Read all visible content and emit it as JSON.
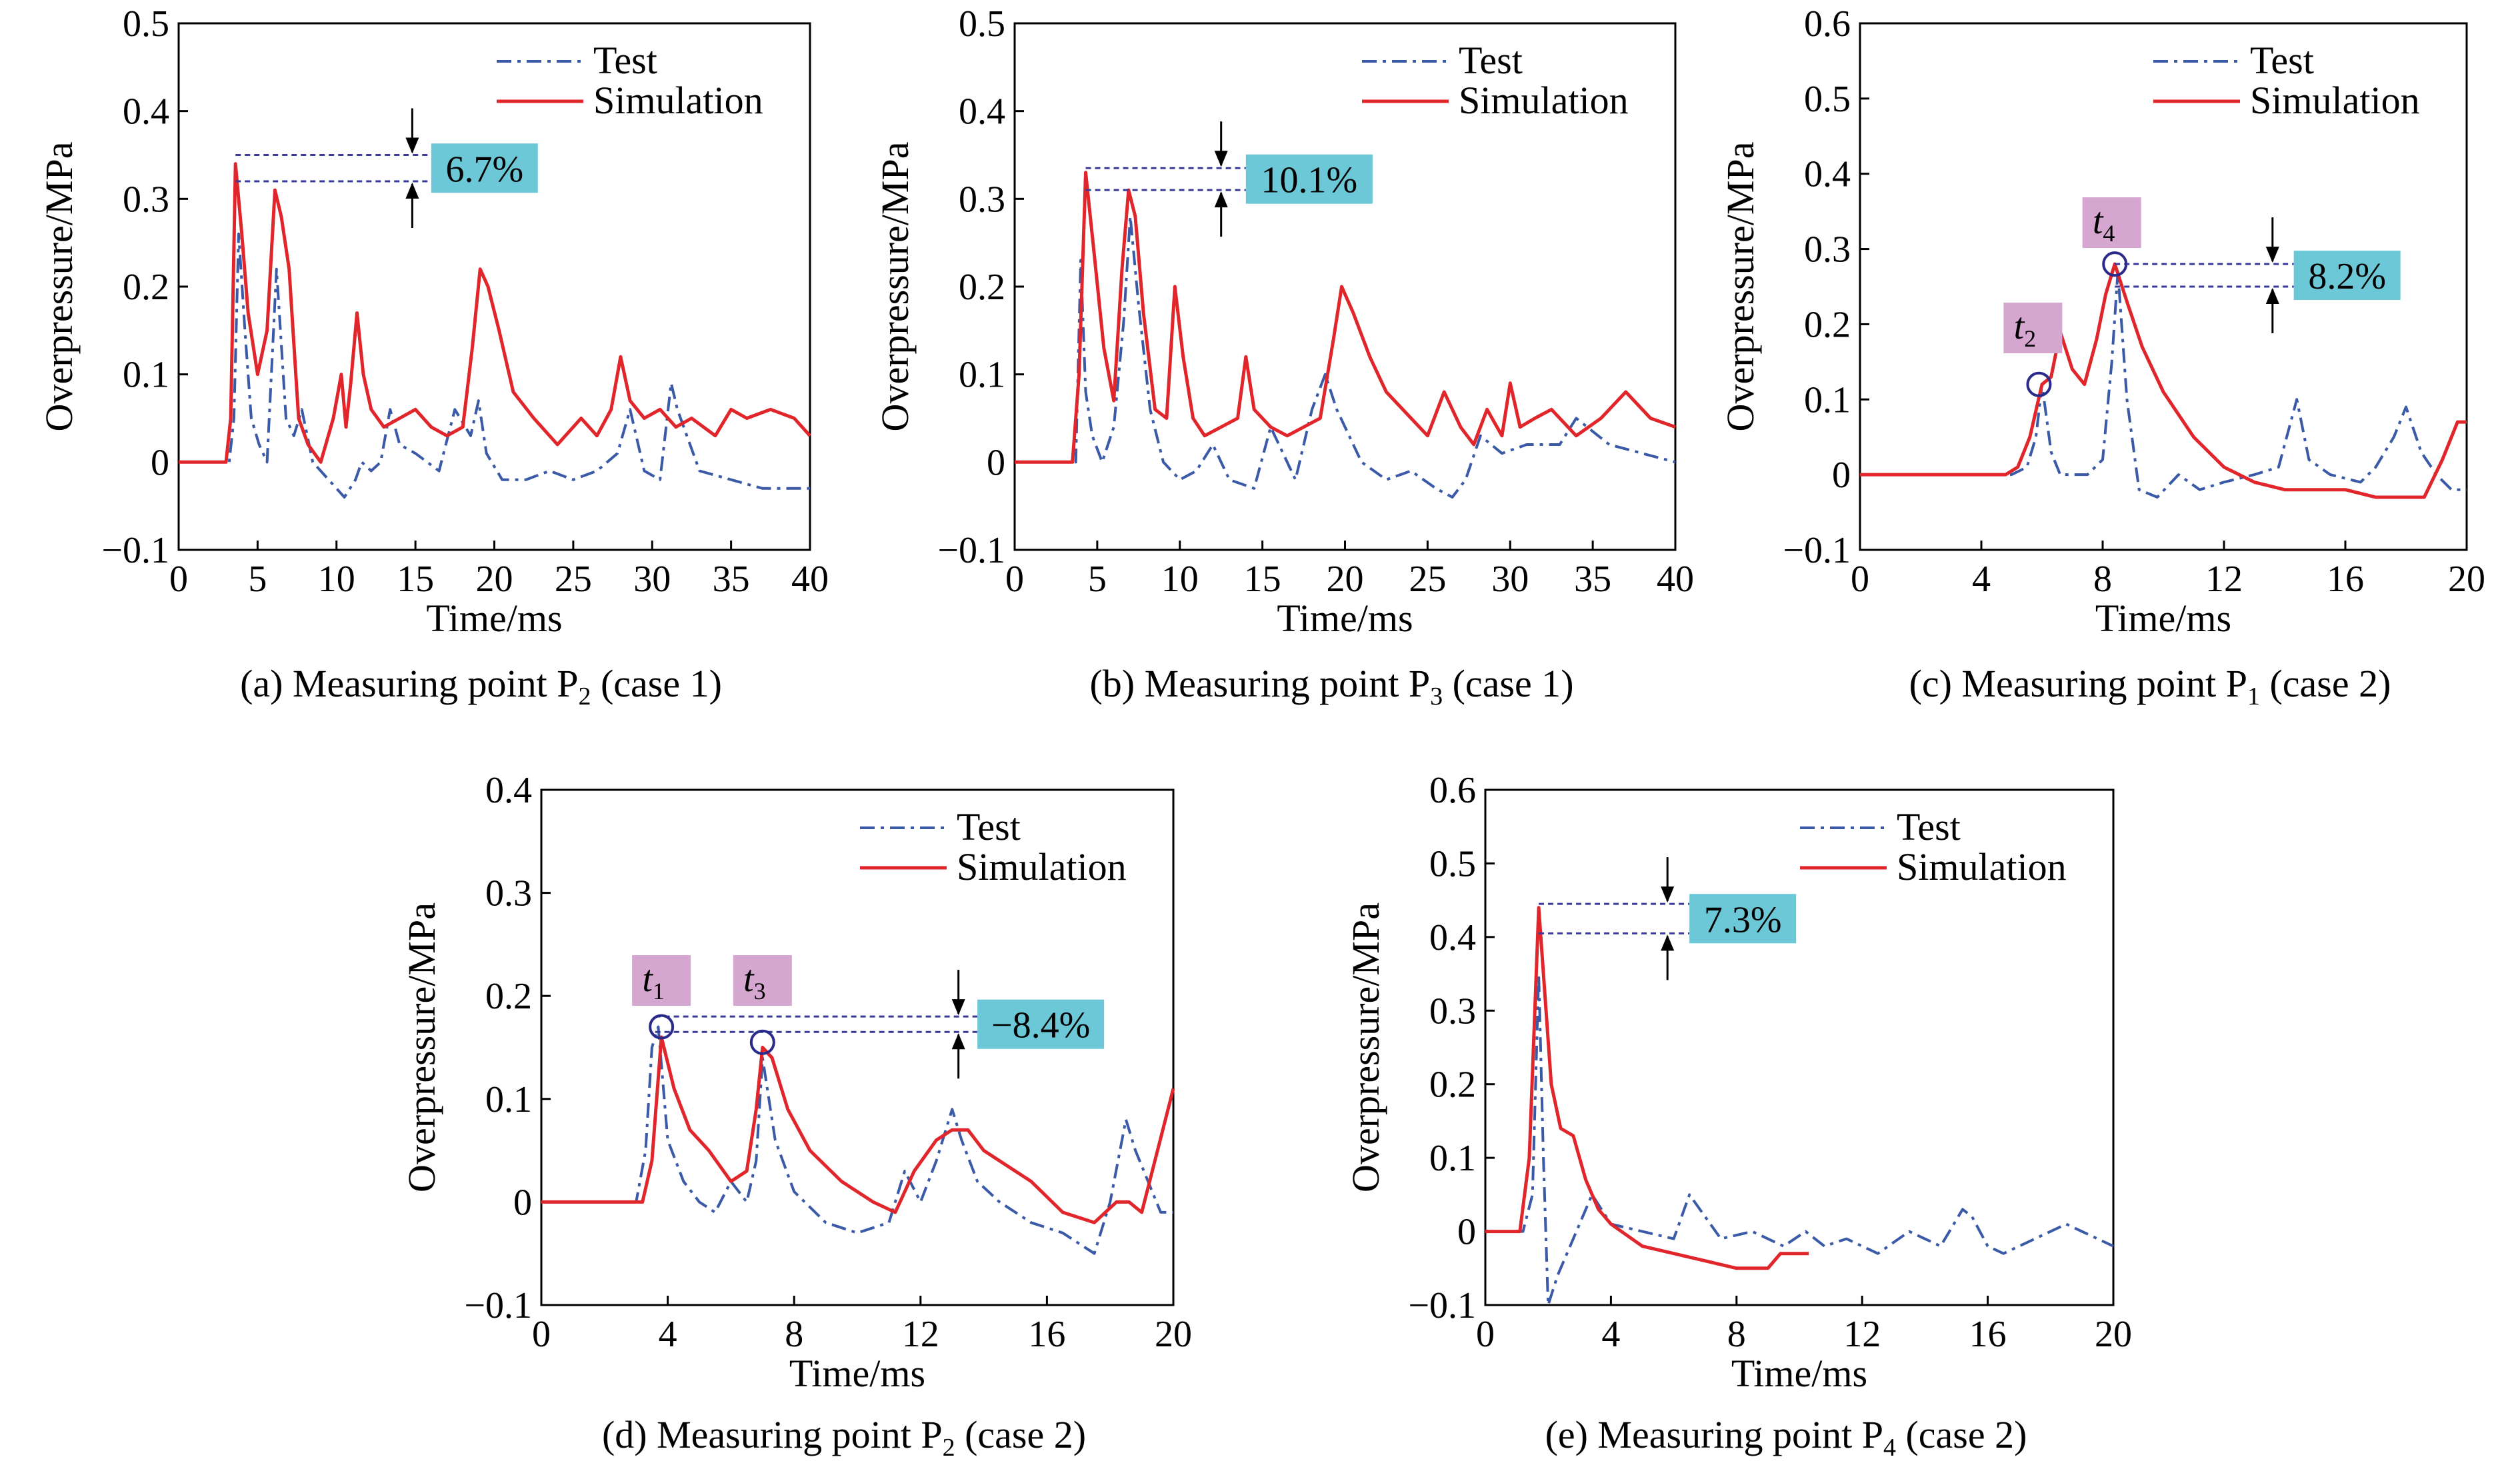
{
  "legend": {
    "test": "Test",
    "simulation": "Simulation"
  },
  "colors": {
    "test": "#3a5aa8",
    "simulation": "#e0262b",
    "pct_box": "#6cc8d6",
    "t_box": "#d5a6cf",
    "axis": "#000000",
    "dash": "#3a3a9a"
  },
  "chart_data": [
    {
      "id": "a",
      "type": "line",
      "caption": {
        "prefix": "(a) Measuring point P",
        "sub": "2",
        "suffix": " (case 1)"
      },
      "xlabel": "Time/ms",
      "ylabel": "Overpressure/MPa",
      "xlim": [
        0,
        40
      ],
      "ylim": [
        -0.1,
        0.5
      ],
      "xticks": [
        0,
        5,
        10,
        15,
        20,
        25,
        30,
        35,
        40
      ],
      "yticks": [
        -0.1,
        0,
        0.1,
        0.2,
        0.3,
        0.4,
        0.5
      ],
      "ytick_labels": [
        "−0.1",
        "0",
        "0.1",
        "0.2",
        "0.3",
        "0.4",
        "0.5"
      ],
      "legend_position": "top-right",
      "series": [
        {
          "name": "Test",
          "style": "dash-dot",
          "x": [
            0,
            3.2,
            3.5,
            3.8,
            4.2,
            4.6,
            5.1,
            5.6,
            6.2,
            6.8,
            7.3,
            7.8,
            8.5,
            9.5,
            10.5,
            11.2,
            11.6,
            12.2,
            12.8,
            13.4,
            14.0,
            15.0,
            16.5,
            17.5,
            18.5,
            19.0,
            19.5,
            20.5,
            22,
            23.5,
            25,
            26.5,
            27.8,
            28.6,
            29.5,
            30.5,
            31.2,
            31.6,
            32.2,
            33,
            35,
            37,
            40
          ],
          "y": [
            0,
            0,
            0.05,
            0.26,
            0.15,
            0.05,
            0.02,
            0.0,
            0.22,
            0.05,
            0.03,
            0.06,
            0.0,
            -0.02,
            -0.04,
            -0.02,
            0.0,
            -0.01,
            0.0,
            0.06,
            0.02,
            0.01,
            -0.01,
            0.06,
            0.03,
            0.07,
            0.01,
            -0.02,
            -0.02,
            -0.01,
            -0.02,
            -0.01,
            0.01,
            0.06,
            -0.01,
            -0.02,
            0.09,
            0.06,
            0.03,
            -0.01,
            -0.02,
            -0.03,
            -0.03
          ]
        },
        {
          "name": "Simulation",
          "style": "solid",
          "x": [
            0,
            3.0,
            3.3,
            3.6,
            4.0,
            4.4,
            5.0,
            5.6,
            6.1,
            6.5,
            7.0,
            7.6,
            8.2,
            9.0,
            9.8,
            10.3,
            10.6,
            10.9,
            11.3,
            11.7,
            12.2,
            13.0,
            14.0,
            15.0,
            16.0,
            17.0,
            18.0,
            18.6,
            19.1,
            19.6,
            20.3,
            21.2,
            22.5,
            24.0,
            25.5,
            26.5,
            27.4,
            28.0,
            28.6,
            29.5,
            30.5,
            31.5,
            32.5,
            34.0,
            35.0,
            36.0,
            37.5,
            39.0,
            40
          ],
          "y": [
            0,
            0.0,
            0.05,
            0.34,
            0.26,
            0.17,
            0.1,
            0.15,
            0.31,
            0.28,
            0.22,
            0.05,
            0.02,
            0.0,
            0.05,
            0.1,
            0.04,
            0.09,
            0.17,
            0.1,
            0.06,
            0.04,
            0.05,
            0.06,
            0.04,
            0.03,
            0.04,
            0.13,
            0.22,
            0.2,
            0.15,
            0.08,
            0.05,
            0.02,
            0.05,
            0.03,
            0.06,
            0.12,
            0.07,
            0.05,
            0.06,
            0.04,
            0.05,
            0.03,
            0.06,
            0.05,
            0.06,
            0.05,
            0.03
          ]
        }
      ],
      "annotations": [
        {
          "kind": "pct",
          "text": "6.7%",
          "y_top": 0.35,
          "y_bottom": 0.32,
          "x_start": 3.6,
          "x_arrow": 14.8,
          "x_box": 16.0
        }
      ]
    },
    {
      "id": "b",
      "type": "line",
      "caption": {
        "prefix": "(b) Measuring point P",
        "sub": "3",
        "suffix": " (case 1)"
      },
      "xlabel": "Time/ms",
      "ylabel": "Overpressure/MPa",
      "xlim": [
        0,
        40
      ],
      "ylim": [
        -0.1,
        0.5
      ],
      "xticks": [
        0,
        5,
        10,
        15,
        20,
        25,
        30,
        35,
        40
      ],
      "yticks": [
        -0.1,
        0,
        0.1,
        0.2,
        0.3,
        0.4,
        0.5
      ],
      "ytick_labels": [
        "−0.1",
        "0",
        "0.1",
        "0.2",
        "0.3",
        "0.4",
        "0.5"
      ],
      "legend_position": "top-right",
      "series": [
        {
          "name": "Test",
          "style": "dash-dot",
          "x": [
            0,
            3.7,
            4.0,
            4.3,
            4.7,
            5.3,
            6.0,
            6.6,
            7.0,
            7.5,
            8.2,
            9.0,
            10.0,
            11.0,
            12.0,
            13.0,
            14.5,
            15.5,
            17.0,
            18.0,
            18.8,
            19.5,
            21.0,
            22.5,
            24.0,
            25.5,
            26.5,
            27.3,
            28.2,
            29.5,
            31.0,
            33.0,
            34.0,
            36.0,
            38.0,
            40
          ],
          "y": [
            0,
            0,
            0.23,
            0.08,
            0.03,
            0.0,
            0.04,
            0.16,
            0.28,
            0.18,
            0.06,
            0.0,
            -0.02,
            -0.01,
            0.02,
            -0.02,
            -0.03,
            0.04,
            -0.02,
            0.06,
            0.1,
            0.06,
            0.0,
            -0.02,
            -0.01,
            -0.03,
            -0.04,
            -0.02,
            0.03,
            0.01,
            0.02,
            0.02,
            0.05,
            0.02,
            0.01,
            0.0
          ]
        },
        {
          "name": "Simulation",
          "style": "solid",
          "x": [
            0,
            3.5,
            3.9,
            4.3,
            4.8,
            5.4,
            6.0,
            6.5,
            6.9,
            7.3,
            7.8,
            8.5,
            9.2,
            9.7,
            10.2,
            10.8,
            11.5,
            12.5,
            13.5,
            14.0,
            14.5,
            15.5,
            16.5,
            17.5,
            18.5,
            19.3,
            19.8,
            20.5,
            21.5,
            22.5,
            24.0,
            25.0,
            26.0,
            27.0,
            27.8,
            28.6,
            29.5,
            30.0,
            30.6,
            31.5,
            32.5,
            34.0,
            35.5,
            37.0,
            38.5,
            40
          ],
          "y": [
            0,
            0.0,
            0.1,
            0.33,
            0.24,
            0.13,
            0.07,
            0.22,
            0.31,
            0.28,
            0.17,
            0.06,
            0.05,
            0.2,
            0.12,
            0.05,
            0.03,
            0.04,
            0.05,
            0.12,
            0.06,
            0.04,
            0.03,
            0.04,
            0.05,
            0.14,
            0.2,
            0.17,
            0.12,
            0.08,
            0.05,
            0.03,
            0.08,
            0.04,
            0.02,
            0.06,
            0.03,
            0.09,
            0.04,
            0.05,
            0.06,
            0.03,
            0.05,
            0.08,
            0.05,
            0.04
          ]
        }
      ],
      "annotations": [
        {
          "kind": "pct",
          "text": "10.1%",
          "y_top": 0.335,
          "y_bottom": 0.31,
          "x_start": 4.3,
          "x_arrow": 12.5,
          "x_box": 14.0
        }
      ]
    },
    {
      "id": "c",
      "type": "line",
      "caption": {
        "prefix": "(c) Measuring point P",
        "sub": "1",
        "suffix": " (case 2)"
      },
      "xlabel": "Time/ms",
      "ylabel": "Overpressure/MPa",
      "xlim": [
        0,
        20
      ],
      "ylim": [
        -0.1,
        0.6
      ],
      "xticks": [
        0,
        4,
        8,
        12,
        16,
        20
      ],
      "yticks": [
        -0.1,
        0,
        0.1,
        0.2,
        0.3,
        0.4,
        0.5,
        0.6
      ],
      "ytick_labels": [
        "−0.1",
        "0",
        "0.1",
        "0.2",
        "0.3",
        "0.4",
        "0.5",
        "0.6"
      ],
      "legend_position": "top-right",
      "series": [
        {
          "name": "Test",
          "style": "dash-dot",
          "x": [
            0,
            5.0,
            5.5,
            5.8,
            6.0,
            6.3,
            6.6,
            7.5,
            8.0,
            8.3,
            8.5,
            8.8,
            9.2,
            9.8,
            10.5,
            11.2,
            12.0,
            13.0,
            13.8,
            14.4,
            14.8,
            15.5,
            16.5,
            17.0,
            17.6,
            18.0,
            18.5,
            19.0,
            19.5,
            20
          ],
          "y": [
            0,
            0.0,
            0.01,
            0.05,
            0.12,
            0.03,
            0.0,
            0.0,
            0.02,
            0.15,
            0.27,
            0.1,
            -0.02,
            -0.03,
            0.0,
            -0.02,
            -0.01,
            0.0,
            0.01,
            0.1,
            0.02,
            0.0,
            -0.01,
            0.01,
            0.05,
            0.09,
            0.03,
            0.0,
            -0.02,
            -0.02
          ]
        },
        {
          "name": "Simulation",
          "style": "solid",
          "x": [
            0,
            4.8,
            5.2,
            5.6,
            6.0,
            6.3,
            6.6,
            7.0,
            7.4,
            7.8,
            8.1,
            8.4,
            8.8,
            9.3,
            10.0,
            11.0,
            12.0,
            13.0,
            14.0,
            15.0,
            16.0,
            17.0,
            18.0,
            18.6,
            19.2,
            19.7,
            20
          ],
          "y": [
            0,
            0.0,
            0.01,
            0.05,
            0.12,
            0.13,
            0.19,
            0.14,
            0.12,
            0.18,
            0.24,
            0.28,
            0.23,
            0.17,
            0.11,
            0.05,
            0.01,
            -0.01,
            -0.02,
            -0.02,
            -0.02,
            -0.03,
            -0.03,
            -0.03,
            0.02,
            0.07,
            0.07
          ]
        }
      ],
      "annotations": [
        {
          "kind": "pct",
          "text": "8.2%",
          "y_top": 0.28,
          "y_bottom": 0.25,
          "x_start": 8.4,
          "x_arrow": 13.6,
          "x_box": 14.3
        },
        {
          "kind": "circle",
          "x": 5.9,
          "y": 0.12
        },
        {
          "kind": "circle",
          "x": 8.4,
          "y": 0.28
        },
        {
          "kind": "tlabel",
          "text": "t",
          "sub": "2",
          "x": 5.7,
          "y": 0.195
        },
        {
          "kind": "tlabel",
          "text": "t",
          "sub": "4",
          "x": 8.3,
          "y": 0.335
        }
      ]
    },
    {
      "id": "d",
      "type": "line",
      "caption": {
        "prefix": "(d) Measuring point P",
        "sub": "2",
        "suffix": " (case 2)"
      },
      "xlabel": "Time/ms",
      "ylabel": "Overpressure/MPa",
      "xlim": [
        0,
        20
      ],
      "ylim": [
        -0.1,
        0.4
      ],
      "xticks": [
        0,
        4,
        8,
        12,
        16,
        20
      ],
      "yticks": [
        -0.1,
        0,
        0.1,
        0.2,
        0.3,
        0.4
      ],
      "ytick_labels": [
        "−0.1",
        "0",
        "0.1",
        "0.2",
        "0.3",
        "0.4"
      ],
      "legend_position": "top-right",
      "series": [
        {
          "name": "Test",
          "style": "dash-dot",
          "x": [
            0,
            3.0,
            3.3,
            3.5,
            3.7,
            4.0,
            4.5,
            5.0,
            5.5,
            6.0,
            6.5,
            6.8,
            7.0,
            7.4,
            8.0,
            9.0,
            10.0,
            11.0,
            11.5,
            12.0,
            12.5,
            13.0,
            13.3,
            13.8,
            14.5,
            15.5,
            16.5,
            17.5,
            18.0,
            18.5,
            18.8,
            19.2,
            19.6,
            20
          ],
          "y": [
            0,
            0.0,
            0.05,
            0.15,
            0.17,
            0.06,
            0.02,
            0.0,
            -0.01,
            0.02,
            0.0,
            0.04,
            0.14,
            0.06,
            0.01,
            -0.02,
            -0.03,
            -0.02,
            0.03,
            0.0,
            0.04,
            0.09,
            0.06,
            0.02,
            0.0,
            -0.02,
            -0.03,
            -0.05,
            0.0,
            0.08,
            0.05,
            0.02,
            -0.01,
            -0.01
          ]
        },
        {
          "name": "Simulation",
          "style": "solid",
          "x": [
            0,
            3.2,
            3.5,
            3.8,
            4.2,
            4.7,
            5.3,
            6.0,
            6.5,
            6.8,
            7.0,
            7.3,
            7.8,
            8.5,
            9.5,
            10.5,
            11.2,
            11.8,
            12.5,
            13.0,
            13.5,
            14.0,
            14.5,
            15.5,
            16.5,
            17.5,
            18.2,
            18.6,
            19.0,
            19.5,
            20
          ],
          "y": [
            0,
            0.0,
            0.04,
            0.16,
            0.11,
            0.07,
            0.05,
            0.02,
            0.03,
            0.09,
            0.15,
            0.14,
            0.09,
            0.05,
            0.02,
            0.0,
            -0.01,
            0.03,
            0.06,
            0.07,
            0.07,
            0.05,
            0.04,
            0.02,
            -0.01,
            -0.02,
            0.0,
            0.0,
            -0.01,
            0.05,
            0.11
          ]
        }
      ],
      "annotations": [
        {
          "kind": "pct",
          "text": "−8.4%",
          "y_top": 0.18,
          "y_bottom": 0.165,
          "x_start": 3.6,
          "x_arrow": 13.2,
          "x_box": 13.8
        },
        {
          "kind": "circle",
          "x": 3.8,
          "y": 0.17
        },
        {
          "kind": "circle",
          "x": 7.0,
          "y": 0.155
        },
        {
          "kind": "tlabel",
          "text": "t",
          "sub": "1",
          "x": 3.8,
          "y": 0.215
        },
        {
          "kind": "tlabel",
          "text": "t",
          "sub": "3",
          "x": 7.0,
          "y": 0.215
        }
      ]
    },
    {
      "id": "e",
      "type": "line",
      "caption": {
        "prefix": "(e) Measuring point P",
        "sub": "4",
        "suffix": " (case 2)"
      },
      "xlabel": "Time/ms",
      "ylabel": "Overpressure/MPa",
      "xlim": [
        0,
        20
      ],
      "ylim": [
        -0.1,
        0.6
      ],
      "xticks": [
        0,
        4,
        8,
        12,
        16,
        20
      ],
      "yticks": [
        -0.1,
        0,
        0.1,
        0.2,
        0.3,
        0.4,
        0.5,
        0.6
      ],
      "ytick_labels": [
        "−0.1",
        "0",
        "0.1",
        "0.2",
        "0.3",
        "0.4",
        "0.5",
        "0.6"
      ],
      "legend_position": "top-right",
      "series": [
        {
          "name": "Test",
          "style": "dash-dot",
          "x": [
            0,
            1.2,
            1.5,
            1.7,
            1.85,
            2.0,
            2.3,
            2.7,
            3.0,
            3.4,
            4.0,
            5.0,
            6.0,
            6.5,
            7.0,
            7.5,
            8.5,
            9.5,
            10.2,
            10.8,
            11.5,
            12.5,
            13.5,
            14.5,
            15.2,
            15.5,
            16.0,
            16.5,
            17.5,
            18.5,
            19.5,
            20
          ],
          "y": [
            0,
            0.0,
            0.05,
            0.35,
            0.1,
            -0.1,
            -0.06,
            -0.02,
            0.01,
            0.05,
            0.01,
            0.0,
            -0.01,
            0.05,
            0.02,
            -0.01,
            0.0,
            -0.02,
            0.0,
            -0.02,
            -0.01,
            -0.03,
            0.0,
            -0.02,
            0.03,
            0.02,
            -0.02,
            -0.03,
            -0.01,
            0.01,
            -0.01,
            -0.02
          ]
        },
        {
          "name": "Simulation",
          "style": "solid",
          "x": [
            0,
            1.1,
            1.4,
            1.7,
            1.9,
            2.1,
            2.4,
            2.8,
            3.2,
            3.6,
            4.0,
            5.0,
            6.0,
            7.0,
            8.0,
            9.0,
            9.4,
            9.8,
            10.3
          ],
          "y": [
            0,
            0.0,
            0.1,
            0.44,
            0.32,
            0.2,
            0.14,
            0.13,
            0.07,
            0.03,
            0.01,
            -0.02,
            -0.03,
            -0.04,
            -0.05,
            -0.05,
            -0.03,
            -0.03,
            -0.03
          ]
        }
      ],
      "annotations": [
        {
          "kind": "pct",
          "text": "7.3%",
          "y_top": 0.445,
          "y_bottom": 0.405,
          "x_start": 1.7,
          "x_arrow": 5.8,
          "x_box": 6.5
        }
      ]
    }
  ]
}
